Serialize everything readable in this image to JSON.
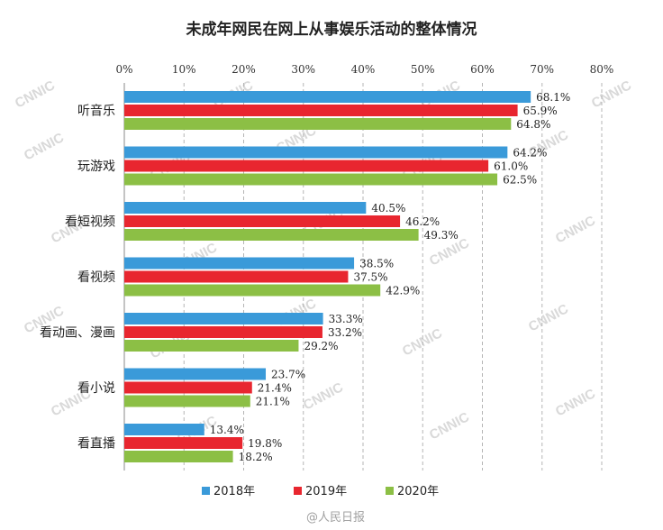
{
  "chart_data": {
    "type": "bar",
    "orientation": "horizontal",
    "title": "未成年网民在网上从事娱乐活动的整体情况",
    "categories": [
      "听音乐",
      "玩游戏",
      "看短视频",
      "看视频",
      "看动画、漫画",
      "看小说",
      "看直播"
    ],
    "series": [
      {
        "name": "2018年",
        "color": "#3a9ad9",
        "values": [
          68.1,
          64.2,
          40.5,
          38.5,
          33.3,
          23.7,
          13.4
        ],
        "labels": [
          "68.1%",
          "64.2%",
          "40.5%",
          "38.5%",
          "33.3%",
          "23.7%",
          "13.4%"
        ]
      },
      {
        "name": "2019年",
        "color": "#e8262f",
        "values": [
          65.9,
          61.0,
          46.2,
          37.5,
          33.2,
          21.4,
          19.8
        ],
        "labels": [
          "65.9%",
          "61.0%",
          "46.2%",
          "37.5%",
          "33.2%",
          "21.4%",
          "19.8%"
        ]
      },
      {
        "name": "2020年",
        "color": "#8cbf45",
        "values": [
          64.8,
          62.5,
          49.3,
          42.9,
          29.2,
          21.1,
          18.2
        ],
        "labels": [
          "64.8%",
          "62.5%",
          "49.3%",
          "42.9%",
          "29.2%",
          "21.1%",
          "18.2%"
        ]
      }
    ],
    "xlim": [
      0,
      80
    ],
    "x_ticks": [
      "0%",
      "10%",
      "20%",
      "30%",
      "40%",
      "50%",
      "60%",
      "70%",
      "80%"
    ],
    "x_axis_position": "top",
    "grid": "vertical dashed",
    "legend_position": "bottom",
    "watermark": "CNNIC",
    "source_mark": "@人民日报"
  }
}
